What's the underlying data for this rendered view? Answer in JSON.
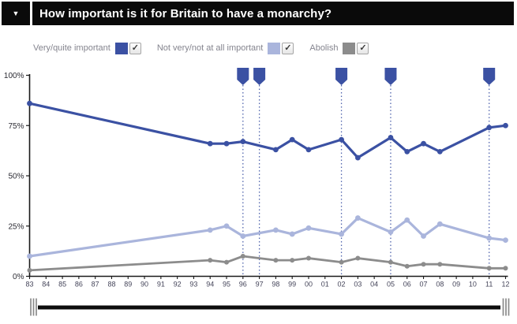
{
  "header": {
    "title": "How important is it for Britain to have a monarchy?",
    "collapse_icon": "chevron-down-icon",
    "collapse_glyph": "▼"
  },
  "legend": {
    "check_glyph": "✓",
    "position": "top"
  },
  "colors": {
    "header_bg": "#0a0a0a",
    "series_dark_blue": "#3b51a3",
    "series_light_blue": "#aab5dc",
    "series_gray": "#8c8c8c",
    "event_line": "#5064ad",
    "axis": "#1a1a1a"
  },
  "chart_data": {
    "type": "line",
    "title": "How important is it for Britain to have a monarchy?",
    "xlabel": "",
    "ylabel": "",
    "ylim": [
      0,
      100
    ],
    "grid": false,
    "legend_position": "top",
    "y_ticks": [
      {
        "label": "100%",
        "value": 100
      },
      {
        "label": "75%",
        "value": 75
      },
      {
        "label": "50%",
        "value": 50
      },
      {
        "label": "25%",
        "value": 25
      },
      {
        "label": "0%",
        "value": 0
      }
    ],
    "x_tick_labels": [
      "83",
      "84",
      "85",
      "86",
      "87",
      "88",
      "89",
      "90",
      "91",
      "92",
      "93",
      "94",
      "95",
      "96",
      "97",
      "98",
      "99",
      "00",
      "01",
      "02",
      "03",
      "04",
      "05",
      "06",
      "07",
      "08",
      "09",
      "10",
      "11",
      "12"
    ],
    "survey_years": [
      "83",
      "94",
      "95",
      "96",
      "98",
      "99",
      "00",
      "02",
      "03",
      "05",
      "06",
      "07",
      "08",
      "11",
      "12"
    ],
    "series": [
      {
        "name": "Very/quite important",
        "color": "#3b51a3",
        "checked": true,
        "values": [
          86,
          66,
          66,
          67,
          63,
          68,
          63,
          68,
          59,
          69,
          62,
          66,
          62,
          74,
          75
        ]
      },
      {
        "name": "Not very/not at all important",
        "color": "#aab5dc",
        "checked": true,
        "values": [
          10,
          23,
          25,
          20,
          23,
          21,
          24,
          21,
          29,
          22,
          28,
          20,
          26,
          19,
          18
        ]
      },
      {
        "name": "Abolish",
        "color": "#8c8c8c",
        "checked": true,
        "values": [
          3,
          8,
          7,
          10,
          8,
          8,
          9,
          7,
          9,
          7,
          5,
          6,
          6,
          4,
          4
        ]
      }
    ],
    "event_markers": {
      "icon": "flag-pin-icon",
      "years": [
        "96",
        "97",
        "02",
        "05",
        "11"
      ]
    }
  },
  "timeline": {
    "type": "range-scrubber",
    "handles": [
      "left",
      "right"
    ]
  }
}
